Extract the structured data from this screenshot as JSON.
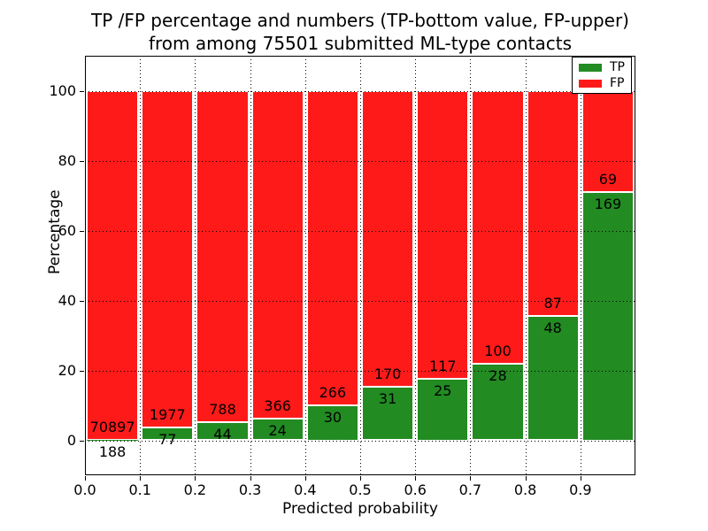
{
  "chart_data": {
    "type": "bar",
    "variant": "stacked-percentage",
    "title_line1": "TP /FP percentage and numbers (TP-bottom value, FP-upper)",
    "title_line2": "from among 75501 submitted ML-type contacts",
    "xlabel": "Predicted probability",
    "ylabel": "Percentage",
    "xlim": [
      0.0,
      1.0
    ],
    "ylim": [
      -10,
      110
    ],
    "grid": true,
    "legend_position": "upper right",
    "y_ticks": [
      0,
      20,
      40,
      60,
      80,
      100
    ],
    "y_tick_labels": [
      "0",
      "20",
      "40",
      "60",
      "80",
      "100"
    ],
    "x_tick_labels": [
      "0.0",
      "0.1",
      "0.2",
      "0.3",
      "0.4",
      "0.5",
      "0.6",
      "0.7",
      "0.8",
      "0.9"
    ],
    "legend": [
      {
        "name": "TP",
        "color": "#228b22"
      },
      {
        "name": "FP",
        "color": "#ff1a1a"
      }
    ],
    "categories": [
      "0.0-0.1",
      "0.1-0.2",
      "0.2-0.3",
      "0.3-0.4",
      "0.4-0.5",
      "0.5-0.6",
      "0.6-0.7",
      "0.7-0.8",
      "0.8-0.9",
      "0.9-1.0"
    ],
    "series": [
      {
        "name": "TP",
        "color": "#228b22",
        "counts": [
          188,
          77,
          44,
          24,
          30,
          31,
          25,
          28,
          48,
          169
        ]
      },
      {
        "name": "FP",
        "color": "#ff1a1a",
        "counts": [
          70897,
          1977,
          788,
          366,
          266,
          170,
          117,
          100,
          87,
          69
        ]
      }
    ],
    "bar_value_labels_tp": [
      "188",
      "77",
      "44",
      "24",
      "30",
      "31",
      "25",
      "28",
      "48",
      "169"
    ],
    "bar_value_labels_fp": [
      "70897",
      "1977",
      "788",
      "366",
      "266",
      "170",
      "117",
      "100",
      "87",
      "69"
    ]
  }
}
